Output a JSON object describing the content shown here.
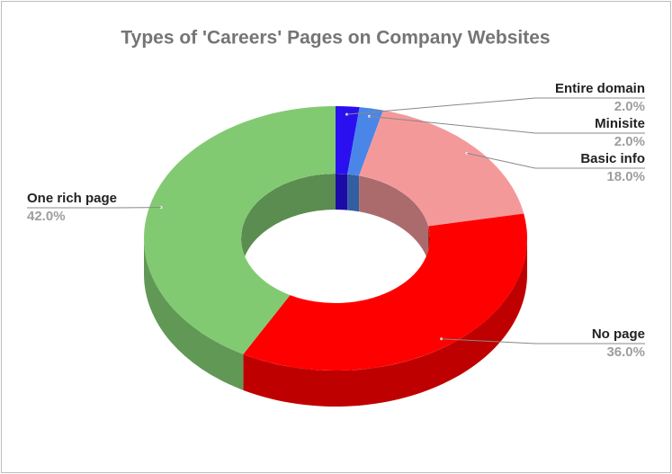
{
  "chart_data": {
    "type": "pie",
    "title": "Types of 'Careers' Pages on Company Websites",
    "categories": [
      "Entire domain",
      "Minisite",
      "Basic info",
      "No page",
      "One rich page"
    ],
    "values": [
      2.0,
      2.0,
      18.0,
      36.0,
      42.0
    ],
    "value_labels": [
      "2.0%",
      "2.0%",
      "18.0%",
      "36.0%",
      "42.0%"
    ],
    "colors": [
      "#2a10f0",
      "#4a86e8",
      "#f4999a",
      "#ff0000",
      "#82ca72"
    ]
  }
}
